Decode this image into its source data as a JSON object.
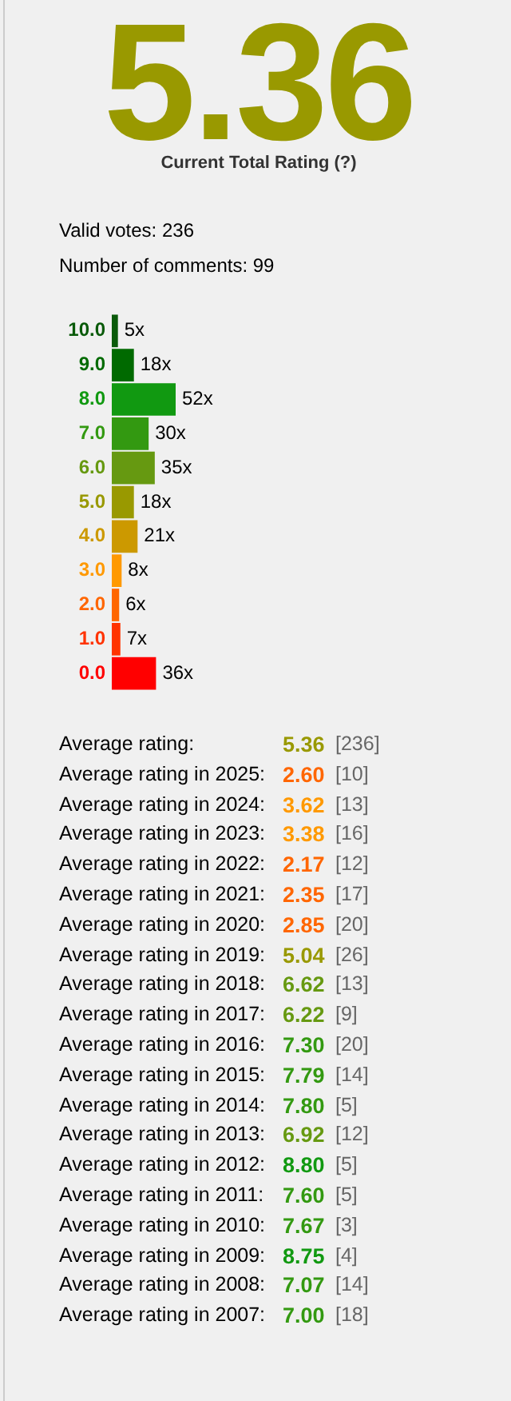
{
  "chart_data": [
    {
      "type": "bar",
      "orientation": "horizontal",
      "title": "5.36",
      "subtitle": "Current Total Rating (?)",
      "annotations": [
        "Valid votes: 236",
        "Number of comments: 99"
      ],
      "categories": [
        "10.0",
        "9.0",
        "8.0",
        "7.0",
        "6.0",
        "5.0",
        "4.0",
        "3.0",
        "2.0",
        "1.0",
        "0.0"
      ],
      "values": [
        5,
        18,
        52,
        30,
        35,
        18,
        21,
        8,
        6,
        7,
        36
      ],
      "value_labels": [
        "5x",
        "18x",
        "52x",
        "30x",
        "35x",
        "18x",
        "21x",
        "8x",
        "6x",
        "7x",
        "36x"
      ],
      "colors": [
        "#0a5a0a",
        "#006a00",
        "#119911",
        "#339911",
        "#669911",
        "#999900",
        "#cc9900",
        "#ff9900",
        "#ff6600",
        "#ff3300",
        "#ff0000"
      ],
      "grid": false,
      "legend": false
    },
    {
      "type": "other",
      "annotations": [
        "Average rating: 5.36 [236]",
        "Average rating in 2025: 2.60 [10]",
        "Average rating in 2024: 3.62 [13]",
        "Average rating in 2023: 3.38 [16]",
        "Average rating in 2022: 2.17 [12]",
        "Average rating in 2021: 2.35 [17]",
        "Average rating in 2020: 2.85 [20]",
        "Average rating in 2019: 5.04 [26]",
        "Average rating in 2018: 6.62 [13]",
        "Average rating in 2017: 6.22 [9]",
        "Average rating in 2016: 7.30 [20]",
        "Average rating in 2015: 7.79 [14]",
        "Average rating in 2014: 7.80 [5]",
        "Average rating in 2013: 6.92 [12]",
        "Average rating in 2012: 8.80 [5]",
        "Average rating in 2011: 7.60 [5]",
        "Average rating in 2010: 7.67 [3]",
        "Average rating in 2009: 8.75 [4]",
        "Average rating in 2008: 7.07 [14]",
        "Average rating in 2007: 7.00 [18]"
      ]
    }
  ]
}
